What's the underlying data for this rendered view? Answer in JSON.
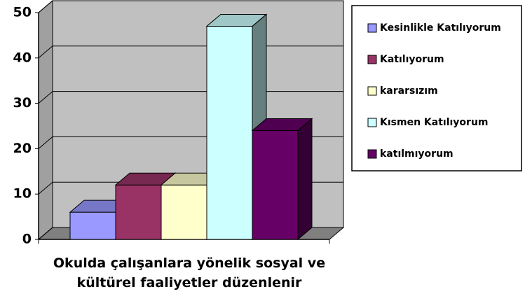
{
  "chart_data": {
    "type": "bar3d",
    "categories": [
      "Okulda çalışanlara yönelik sosyal ve kültürel faaliyetler düzenlenir"
    ],
    "series": [
      {
        "name": "Kesinlikle Katılıyorum",
        "color": "#9999ff",
        "values": [
          6
        ]
      },
      {
        "name": "Katılıyorum",
        "color": "#993366",
        "values": [
          12
        ]
      },
      {
        "name": "kararsızım",
        "color": "#ffffcc",
        "values": [
          12
        ]
      },
      {
        "name": "Kısmen Katılıyorum",
        "color": "#ccffff",
        "values": [
          47
        ]
      },
      {
        "name": "katılmıyorum",
        "color": "#660066",
        "values": [
          24
        ]
      }
    ],
    "ylim": [
      0,
      50
    ],
    "yticks": [
      0,
      10,
      20,
      30,
      40,
      50
    ],
    "grid": true,
    "legend": "right"
  }
}
